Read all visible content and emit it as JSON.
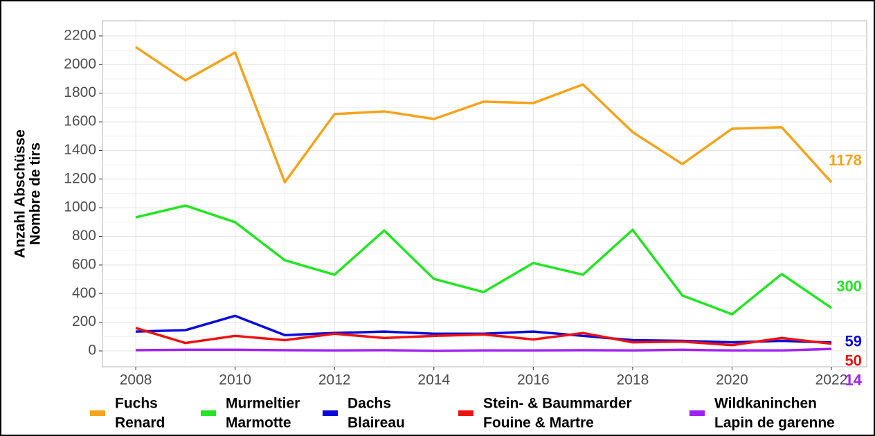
{
  "chart_data": {
    "type": "line",
    "ylabel": [
      "Anzahl Abschüsse",
      "Nombre de tirs"
    ],
    "x": [
      2008,
      2009,
      2010,
      2011,
      2012,
      2013,
      2014,
      2015,
      2016,
      2017,
      2018,
      2019,
      2020,
      2021,
      2022
    ],
    "series": [
      {
        "name": [
          "Fuchs",
          "Renard"
        ],
        "color": "#f5a31a",
        "values": [
          2122,
          1890,
          2084,
          1178,
          1654,
          1673,
          1620,
          1741,
          1731,
          1861,
          1528,
          1305,
          1552,
          1562,
          1178
        ]
      },
      {
        "name": [
          "Murmeltier",
          "Marmotte"
        ],
        "color": "#22e622",
        "values": [
          933,
          1015,
          899,
          633,
          532,
          841,
          503,
          411,
          614,
          532,
          846,
          387,
          256,
          537,
          300
        ]
      },
      {
        "name": [
          "Dachs",
          "Blaireau"
        ],
        "color": "#0a0adc",
        "values": [
          135,
          145,
          245,
          110,
          125,
          135,
          120,
          120,
          135,
          105,
          75,
          70,
          60,
          70,
          59
        ]
      },
      {
        "name": [
          "Stein- & Baummarder",
          "Fouine & Martre"
        ],
        "color": "#ee1111",
        "values": [
          160,
          55,
          105,
          75,
          120,
          90,
          105,
          115,
          80,
          125,
          60,
          65,
          40,
          90,
          50
        ]
      },
      {
        "name": [
          "Wildkaninchen",
          "Lapin de garenne"
        ],
        "color": "#a020f0",
        "values": [
          5,
          8,
          8,
          5,
          3,
          5,
          0,
          3,
          3,
          5,
          3,
          8,
          3,
          3,
          14
        ]
      }
    ],
    "xlim": [
      2007.33,
      2022.71
    ],
    "xticks": [
      2008,
      2010,
      2012,
      2014,
      2016,
      2018,
      2020,
      2022
    ],
    "ylim": [
      -111,
      2306
    ],
    "yticks": [
      0,
      200,
      400,
      600,
      800,
      1000,
      1200,
      1400,
      1600,
      1800,
      2000,
      2200
    ],
    "grid": true,
    "legend": "bottom"
  }
}
